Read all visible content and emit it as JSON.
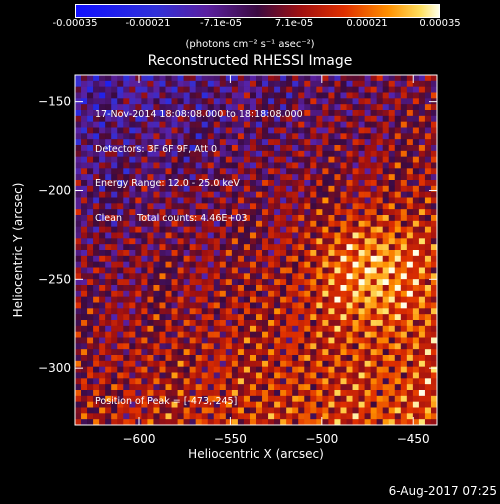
{
  "chart_data": {
    "type": "heatmap",
    "title": "Reconstructed RHESSI Image",
    "xlabel": "Heliocentric X (arcsec)",
    "ylabel": "Heliocentric Y (arcsec)",
    "xlim": [
      -635,
      -437
    ],
    "ylim": [
      -332,
      -135
    ],
    "x_ticks": [
      -600,
      -550,
      -500,
      -450
    ],
    "y_ticks": [
      -150,
      -200,
      -250,
      -300
    ],
    "colorbar": {
      "ticks": [
        "-0.00035",
        "-0.00021",
        "-7.1e-05",
        "7.1e-05",
        "0.00021",
        "0.00035"
      ],
      "units": "(photons cm⁻² s⁻¹ asec⁻²)",
      "range": [
        -0.00035,
        0.00035
      ]
    },
    "annotations": [
      "17-Nov-2014 18:08:08.000 to 18:18:08.000",
      "Detectors: 3F 6F 9F, Att 0",
      "Energy Range: 12.0 - 25.0 keV",
      "Clean     Total counts: 4.46E+03"
    ],
    "peak_label": "Position of Peak = [-473,-245]",
    "peak": [
      -473,
      -245
    ]
  },
  "timestamp": "6-Aug-2017 07:25"
}
